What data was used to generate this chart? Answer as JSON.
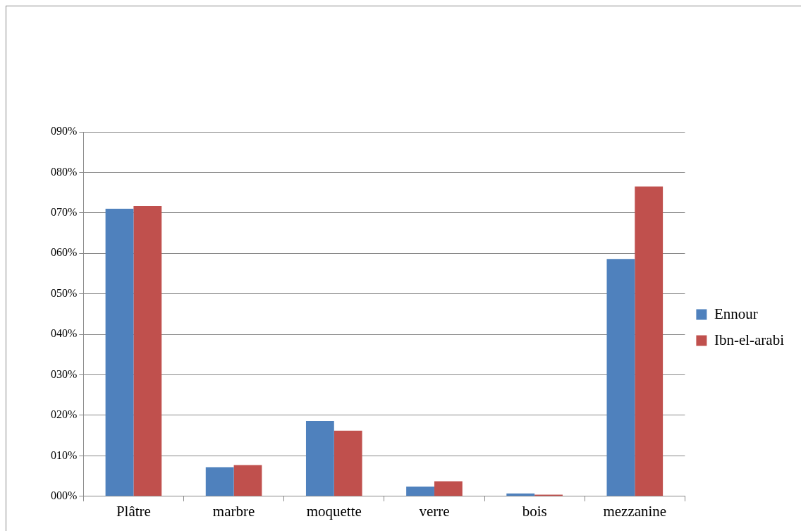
{
  "chart_data": {
    "type": "bar",
    "categories": [
      "Plâtre",
      "marbre",
      "moquette",
      "verre",
      "bois",
      "mezzanine"
    ],
    "series": [
      {
        "name": "Ennour",
        "color": "#4f81bd",
        "values": [
          71,
          7.2,
          18.6,
          2.4,
          0.7,
          58.6
        ]
      },
      {
        "name": "Ibn-el-arabi",
        "color": "#c0504d",
        "values": [
          71.7,
          7.7,
          16.2,
          3.7,
          0.4,
          76.5
        ]
      }
    ],
    "ylim": [
      0,
      90
    ],
    "yticks": [
      {
        "value": 0,
        "label": "000%"
      },
      {
        "value": 10,
        "label": "010%"
      },
      {
        "value": 20,
        "label": "020%"
      },
      {
        "value": 30,
        "label": "030%"
      },
      {
        "value": 40,
        "label": "040%"
      },
      {
        "value": 50,
        "label": "050%"
      },
      {
        "value": 60,
        "label": "060%"
      },
      {
        "value": 70,
        "label": "070%"
      },
      {
        "value": 80,
        "label": "080%"
      },
      {
        "value": 90,
        "label": "090%"
      }
    ],
    "grid": "y",
    "legend": "right"
  }
}
